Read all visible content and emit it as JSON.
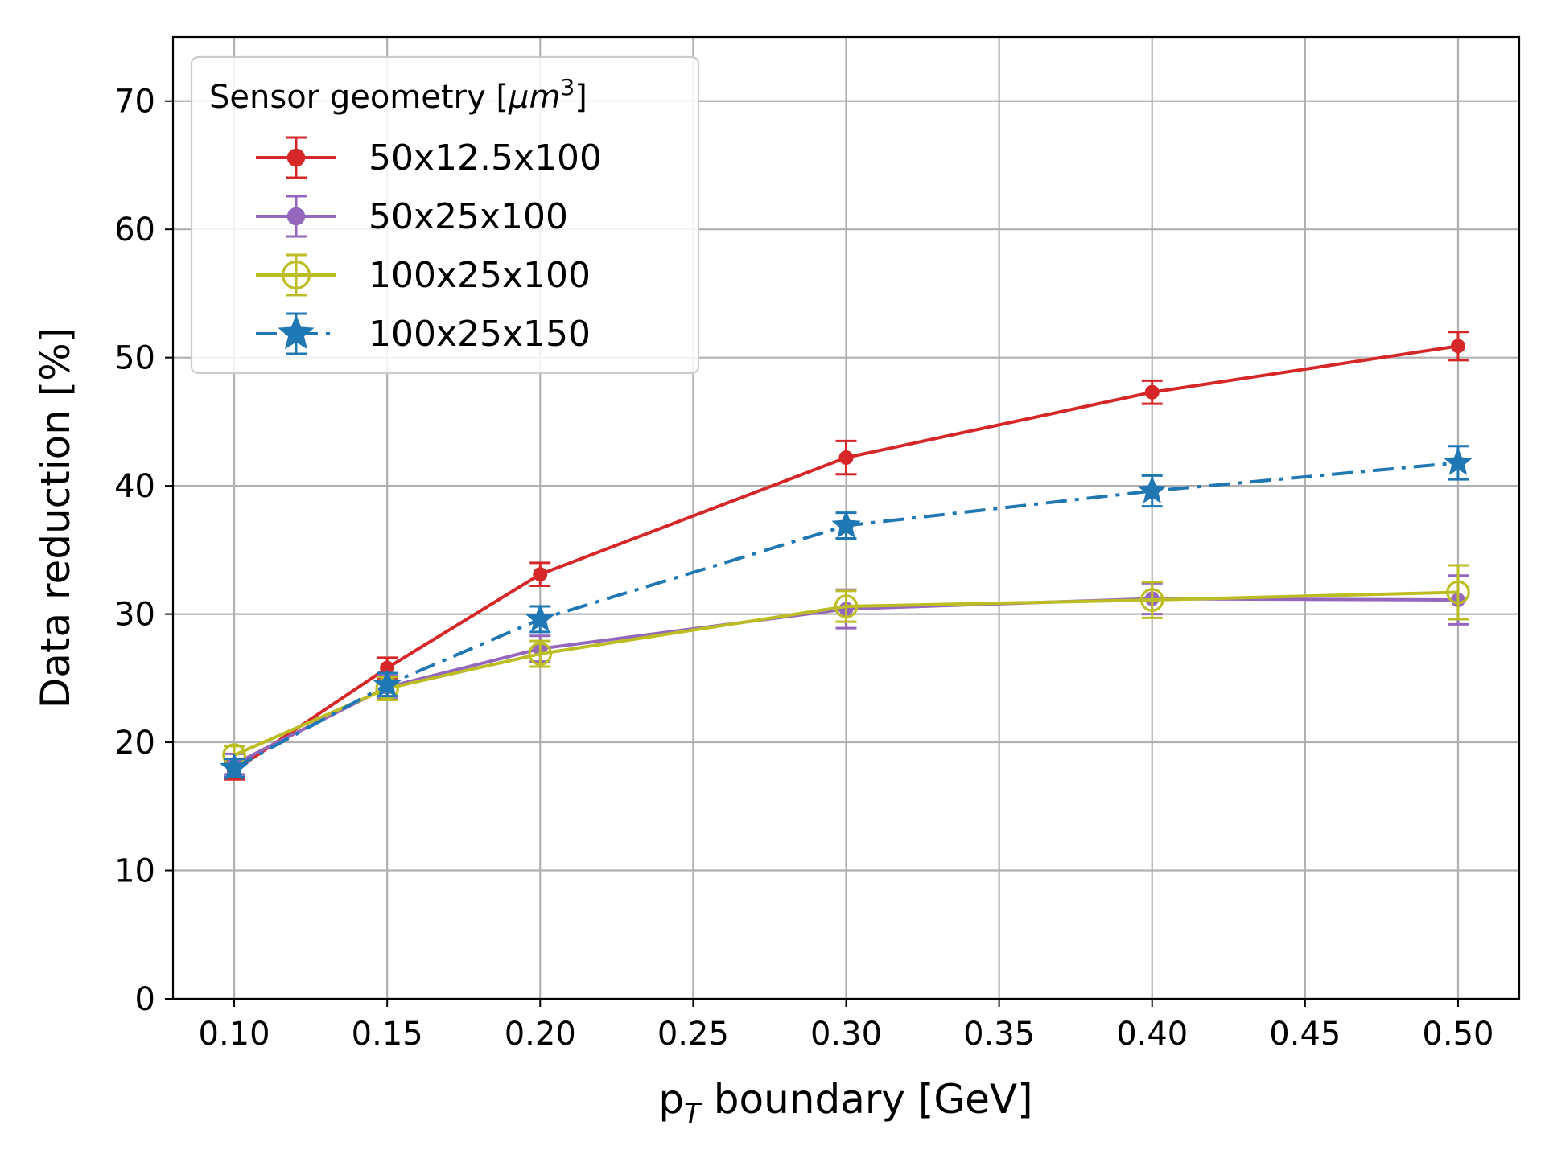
{
  "chart_data": {
    "type": "line",
    "title": "",
    "xlabel": "p",
    "xlabel_sub": "T",
    "xlabel_rest": " boundary [GeV]",
    "ylabel": "Data reduction [%]",
    "xlim": [
      0.08,
      0.52
    ],
    "ylim": [
      0,
      75
    ],
    "grid": true,
    "x_ticks": [
      0.1,
      0.15,
      0.2,
      0.25,
      0.3,
      0.35,
      0.4,
      0.45,
      0.5
    ],
    "x_tick_labels": [
      "0.10",
      "0.15",
      "0.20",
      "0.25",
      "0.30",
      "0.35",
      "0.40",
      "0.45",
      "0.50"
    ],
    "y_ticks": [
      0,
      10,
      20,
      30,
      40,
      50,
      60,
      70
    ],
    "y_tick_labels": [
      "0",
      "10",
      "20",
      "30",
      "40",
      "50",
      "60",
      "70"
    ],
    "x": [
      0.1,
      0.15,
      0.2,
      0.3,
      0.4,
      0.5
    ],
    "legend": {
      "title_text": "Sensor geometry [",
      "title_math": "μm",
      "title_sup": "3",
      "title_close": "]",
      "placement": "top-left"
    },
    "series": [
      {
        "name": "50x12.5x100",
        "color": "#d62728",
        "marker": "dot",
        "linestyle": "solid",
        "values": [
          17.8,
          25.8,
          33.1,
          42.2,
          47.3,
          50.9
        ],
        "errors": [
          0.7,
          0.8,
          0.9,
          1.3,
          0.9,
          1.1
        ]
      },
      {
        "name": "50x25x100",
        "color": "#9467bd",
        "marker": "dot",
        "linestyle": "solid",
        "values": [
          18.3,
          24.3,
          27.3,
          30.4,
          31.2,
          31.1
        ],
        "errors": [
          0.8,
          0.9,
          1.0,
          1.5,
          1.2,
          1.9
        ]
      },
      {
        "name": "100x25x100",
        "color": "#bcbd22",
        "marker": "open-circle",
        "linestyle": "solid",
        "values": [
          19.0,
          24.2,
          26.9,
          30.6,
          31.1,
          31.7
        ],
        "errors": [
          0.7,
          0.9,
          1.0,
          1.2,
          1.4,
          2.1
        ]
      },
      {
        "name": "100x25x150",
        "color": "#1f77b4",
        "marker": "star",
        "linestyle": "dashdot",
        "values": [
          18.0,
          24.5,
          29.6,
          36.9,
          39.6,
          41.8
        ],
        "errors": [
          0.7,
          0.9,
          1.0,
          1.0,
          1.2,
          1.3
        ]
      }
    ]
  }
}
